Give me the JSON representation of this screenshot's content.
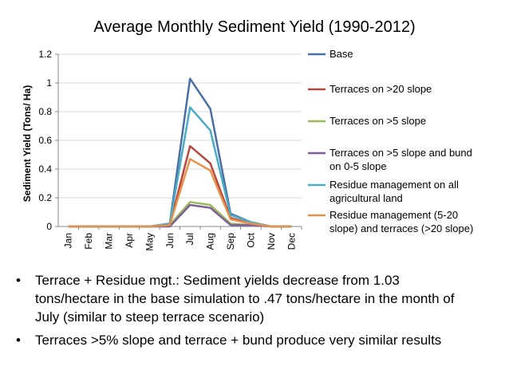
{
  "chart_data": {
    "type": "line",
    "title": "Average Monthly Sediment Yield (1990-2012)",
    "xlabel": "",
    "ylabel": "Sediment Yield (Tons/ Ha)",
    "ylim": [
      0,
      1.2
    ],
    "yticks": [
      "0",
      "0.2",
      "0.4",
      "0.6",
      "0.8",
      "1",
      "1.2"
    ],
    "ytick_values": [
      0,
      0.2,
      0.4,
      0.6,
      0.8,
      1.0,
      1.2
    ],
    "grid": true,
    "legend_position": "right",
    "categories": [
      "Jan",
      "Feb",
      "Mar",
      "Apr",
      "May",
      "Jun",
      "Jul",
      "Aug",
      "Sep",
      "Oct",
      "Nov",
      "Dec"
    ],
    "series": [
      {
        "name": "Base",
        "legend_lines": [
          "Base"
        ],
        "color": "#4a6fa5",
        "values": [
          0,
          0,
          0,
          0,
          0,
          0.02,
          1.03,
          0.82,
          0.09,
          0.03,
          0,
          0
        ]
      },
      {
        "name": "Terraces on >20 slope",
        "legend_lines": [
          "Terraces on >20 slope"
        ],
        "color": "#b8483f",
        "values": [
          0,
          0,
          0,
          0,
          0,
          0.01,
          0.56,
          0.44,
          0.06,
          0.02,
          0,
          0
        ]
      },
      {
        "name": "Terraces on >5 slope",
        "legend_lines": [
          "Terraces on >5 slope"
        ],
        "color": "#9bbb59",
        "values": [
          0,
          0,
          0,
          0,
          0,
          0.01,
          0.17,
          0.15,
          0.02,
          0.01,
          0,
          0
        ]
      },
      {
        "name": "Terraces on >5 slope and bund on 0-5 slope",
        "legend_lines": [
          "Terraces on >5 slope and bund",
          "on 0-5 slope"
        ],
        "color": "#7e5e9b",
        "values": [
          0,
          0,
          0,
          0,
          0,
          0,
          0.15,
          0.13,
          0.01,
          0.01,
          0,
          0
        ]
      },
      {
        "name": "Residue management on all agricultural land",
        "legend_lines": [
          "Residue management on all",
          "agricultural land"
        ],
        "color": "#4aacc5",
        "values": [
          0,
          0,
          0,
          0,
          0,
          0.02,
          0.83,
          0.67,
          0.08,
          0.03,
          0,
          0
        ]
      },
      {
        "name": "Residue management (5-20 slope) and terraces (>20 slope)",
        "legend_lines": [
          "Residue management (5-20",
          "slope) and terraces (>20 slope)"
        ],
        "color": "#e8914b",
        "values": [
          0,
          0,
          0,
          0,
          0,
          0.01,
          0.47,
          0.39,
          0.05,
          0.02,
          0,
          0
        ]
      }
    ]
  },
  "bullets": [
    {
      "lines": [
        "Terrace + Residue mgt.: Sediment yields decrease from 1.03",
        "tons/hectare in the base simulation to .47 tons/hectare in the month of",
        "July (similar to steep terrace scenario)"
      ]
    },
    {
      "lines": [
        "Terraces >5% slope and terrace + bund produce very similar results"
      ]
    }
  ]
}
